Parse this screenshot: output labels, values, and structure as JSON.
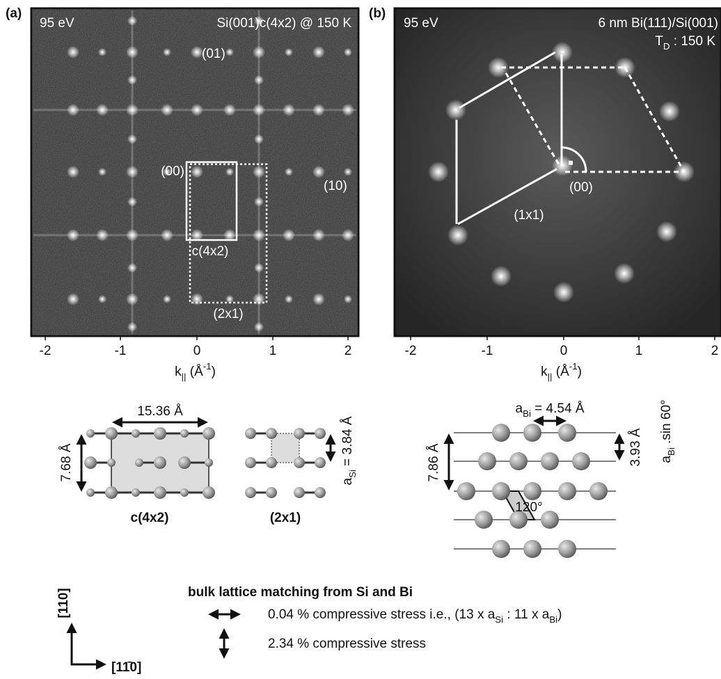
{
  "panel_a": {
    "label": "(a)",
    "energy": "95 eV",
    "sample": "Si(001)c(4x2) @ 150 K",
    "spot_labels": [
      "(01)",
      "(00)",
      "(10)"
    ],
    "cells": [
      "c(4x2)",
      "(2x1)"
    ],
    "xticks": [
      -2,
      -1,
      0,
      1,
      2
    ],
    "xlabel": [
      {
        "text": "k"
      },
      {
        "sub": "||"
      },
      {
        "text": " (Å"
      },
      {
        "sup": "-1"
      },
      {
        "text": ")"
      }
    ]
  },
  "panel_b": {
    "label": "(b)",
    "energy": "95 eV",
    "sample": "6 nm Bi(111)/Si(001)",
    "temperature": [
      {
        "text": "T"
      },
      {
        "sub": "D"
      },
      {
        "text": " : 150 K"
      }
    ],
    "spot_labels": [
      "(00)"
    ],
    "cells": [
      "(1x1)"
    ],
    "xticks": [
      -2,
      -1,
      0,
      1,
      2
    ],
    "xlabel": [
      {
        "text": "k"
      },
      {
        "sub": "||"
      },
      {
        "text": " (Å"
      },
      {
        "sup": "-1"
      },
      {
        "text": ")"
      }
    ]
  },
  "si_lattice": {
    "width": "15.36 Å",
    "height": "7.68 Å",
    "c4x2": "c(4x2)",
    "p2x1": "(2x1)",
    "a_si": [
      {
        "text": "a"
      },
      {
        "sub": "Si"
      },
      {
        "text": " = 3.84 Å"
      }
    ]
  },
  "bi_lattice": {
    "a_bi": [
      {
        "text": "a"
      },
      {
        "sub": "Bi"
      },
      {
        "text": " = 4.54 Å"
      }
    ],
    "height": "7.86 Å",
    "row": "3.93 Å",
    "row_formula": [
      {
        "text": "a"
      },
      {
        "sub": "Bi"
      },
      {
        "text": " .sin 60°"
      }
    ],
    "angle": "120°"
  },
  "legend": {
    "title": "bulk lattice matching from Si and Bi",
    "horizontal": [
      {
        "text": "0.04 % compressive stress i.e., (13 x a"
      },
      {
        "sub": "Si"
      },
      {
        "text": " : 11 x a"
      },
      {
        "sub": "Bi"
      },
      {
        "text": ")"
      }
    ],
    "vertical": "2.34 % compressive stress",
    "dir_vertical": "[110]",
    "dir_horizontal": "[11̄0]"
  }
}
